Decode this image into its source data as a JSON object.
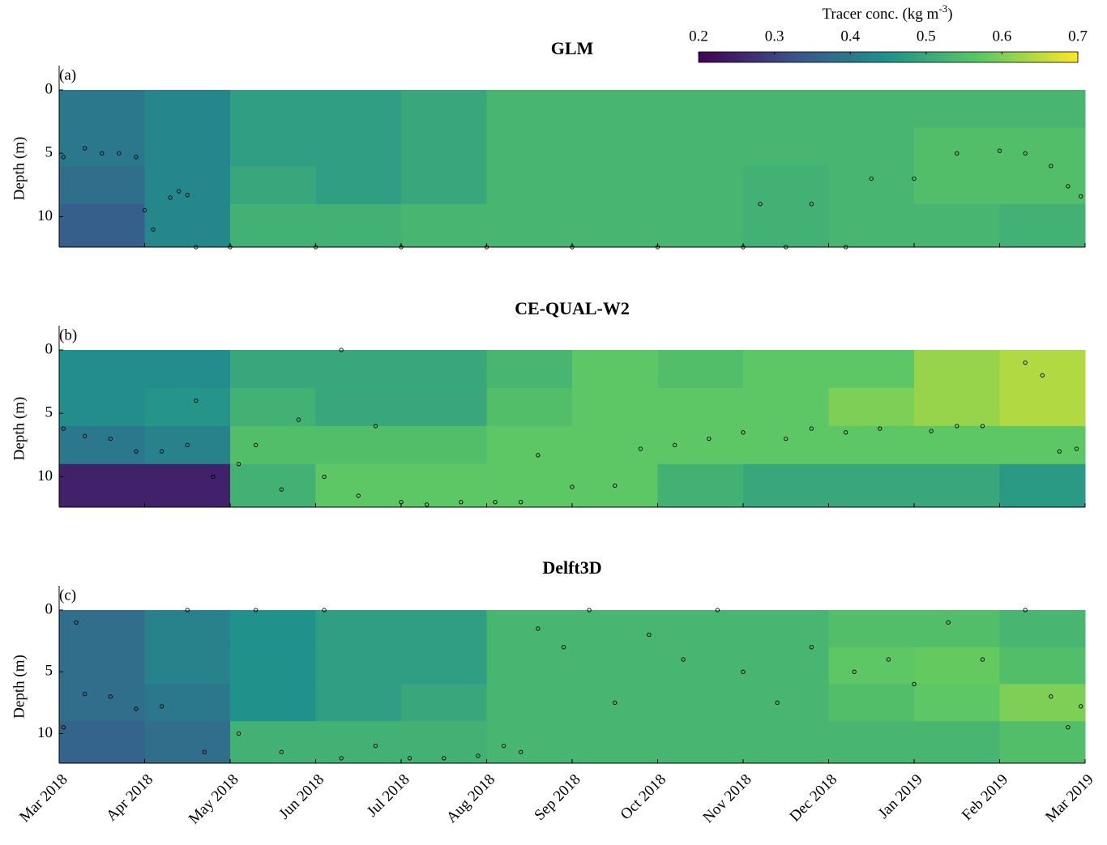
{
  "chart_data": [
    {
      "type": "heatmap-scatter",
      "title": "GLM",
      "panel_label": "(a)",
      "y_label": "Depth (m)",
      "ylim": [
        0,
        12.4
      ],
      "yticks": [
        0,
        5,
        10
      ],
      "xlim": [
        0,
        12
      ],
      "colorbar": {
        "label": "Tracer conc. (kg m",
        "label_superscript": "-3",
        "label_end": ")",
        "lim": [
          0.2,
          0.7
        ],
        "ticks": [
          0.2,
          0.3,
          0.4,
          0.5,
          0.6,
          0.7
        ]
      },
      "field": {
        "x_edges": [
          0,
          1,
          2,
          3,
          4,
          5,
          6,
          7,
          8,
          9,
          10,
          11,
          12
        ],
        "depth_edges": [
          0,
          3,
          6,
          9,
          12.4
        ],
        "values": [
          [
            0.4,
            0.4,
            0.38,
            0.35
          ],
          [
            0.43,
            0.43,
            0.43,
            0.43
          ],
          [
            0.48,
            0.48,
            0.5,
            0.52
          ],
          [
            0.48,
            0.48,
            0.48,
            0.52
          ],
          [
            0.5,
            0.5,
            0.5,
            0.53
          ],
          [
            0.53,
            0.53,
            0.53,
            0.53
          ],
          [
            0.53,
            0.53,
            0.53,
            0.53
          ],
          [
            0.53,
            0.53,
            0.53,
            0.53
          ],
          [
            0.53,
            0.53,
            0.52,
            0.52
          ],
          [
            0.53,
            0.53,
            0.53,
            0.53
          ],
          [
            0.53,
            0.55,
            0.55,
            0.53
          ],
          [
            0.53,
            0.55,
            0.55,
            0.52
          ]
        ]
      },
      "points": {
        "x": [
          0.05,
          0.3,
          0.5,
          0.7,
          0.9,
          1.0,
          1.1,
          1.3,
          1.4,
          1.5,
          1.6,
          2,
          3,
          4,
          5,
          6,
          7,
          8,
          8.2,
          8.5,
          8.8,
          9.2,
          9.5,
          10,
          10.5,
          11,
          11.3,
          11.6,
          11.8,
          11.95
        ],
        "values": [
          5.3,
          4.6,
          5,
          5,
          5.3,
          9.5,
          11,
          8.5,
          8,
          8.3,
          12.4,
          12.4,
          12.4,
          12.4,
          12.4,
          12.4,
          12.4,
          12.4,
          9,
          12.4,
          9,
          12.4,
          7,
          7,
          5,
          4.8,
          5,
          6,
          7.6,
          8.4
        ]
      }
    },
    {
      "type": "heatmap-scatter",
      "title": "CE-QUAL-W2",
      "panel_label": "(b)",
      "y_label": "Depth (m)",
      "ylim": [
        0,
        12.4
      ],
      "yticks": [
        0,
        5,
        10
      ],
      "xlim": [
        0,
        12
      ],
      "field": {
        "x_edges": [
          0,
          1,
          2,
          3,
          4,
          5,
          6,
          7,
          8,
          9,
          10,
          11,
          12
        ],
        "depth_edges": [
          0,
          3,
          6,
          9,
          12.4
        ],
        "values": [
          [
            0.44,
            0.44,
            0.4,
            0.25
          ],
          [
            0.44,
            0.46,
            0.42,
            0.25
          ],
          [
            0.5,
            0.52,
            0.55,
            0.52
          ],
          [
            0.5,
            0.5,
            0.55,
            0.57
          ],
          [
            0.5,
            0.5,
            0.55,
            0.57
          ],
          [
            0.53,
            0.55,
            0.57,
            0.57
          ],
          [
            0.57,
            0.57,
            0.57,
            0.57
          ],
          [
            0.55,
            0.57,
            0.57,
            0.52
          ],
          [
            0.57,
            0.57,
            0.57,
            0.5
          ],
          [
            0.57,
            0.6,
            0.57,
            0.5
          ],
          [
            0.62,
            0.62,
            0.57,
            0.5
          ],
          [
            0.64,
            0.64,
            0.57,
            0.47
          ]
        ]
      },
      "points": {
        "x": [
          0.05,
          0.3,
          0.6,
          0.9,
          1.2,
          1.5,
          1.6,
          1.8,
          2.1,
          2.3,
          2.6,
          2.8,
          3.1,
          3.3,
          3.5,
          3.7,
          4,
          4.3,
          4.7,
          5.1,
          5.4,
          5.6,
          6,
          6.5,
          6.8,
          7.2,
          7.6,
          8,
          8.5,
          8.8,
          9.2,
          9.6,
          10.2,
          10.5,
          10.8,
          11.3,
          11.5,
          11.7,
          11.9
        ],
        "values": [
          6.2,
          6.8,
          7,
          8,
          8,
          7.5,
          4,
          10,
          9,
          7.5,
          11,
          5.5,
          10,
          0,
          11.5,
          6,
          12,
          12.2,
          12,
          12,
          12,
          8.3,
          10.8,
          10.7,
          7.8,
          7.5,
          7,
          6.5,
          7,
          6.2,
          6.5,
          6.2,
          6.4,
          6,
          6,
          1,
          2,
          8,
          7.8
        ]
      }
    },
    {
      "type": "heatmap-scatter",
      "title": "Delft3D",
      "panel_label": "(c)",
      "y_label": "Depth (m)",
      "ylim": [
        0,
        12.4
      ],
      "yticks": [
        0,
        5,
        10
      ],
      "xlim": [
        0,
        12
      ],
      "xticks": [
        {
          "value": 0,
          "label": "Mar 2018"
        },
        {
          "value": 1,
          "label": "Apr 2018"
        },
        {
          "value": 2,
          "label": "May 2018"
        },
        {
          "value": 3,
          "label": "Jun 2018"
        },
        {
          "value": 4,
          "label": "Jul 2018"
        },
        {
          "value": 5,
          "label": "Aug 2018"
        },
        {
          "value": 6,
          "label": "Sep 2018"
        },
        {
          "value": 7,
          "label": "Oct 2018"
        },
        {
          "value": 8,
          "label": "Nov 2018"
        },
        {
          "value": 9,
          "label": "Dec 2018"
        },
        {
          "value": 10,
          "label": "Jan 2019"
        },
        {
          "value": 11,
          "label": "Feb 2019"
        },
        {
          "value": 12,
          "label": "Mar 2019"
        }
      ],
      "field": {
        "x_edges": [
          0,
          1,
          2,
          3,
          4,
          5,
          6,
          7,
          8,
          9,
          10,
          11,
          12
        ],
        "depth_edges": [
          0,
          3,
          6,
          9,
          12.4
        ],
        "values": [
          [
            0.38,
            0.38,
            0.38,
            0.36
          ],
          [
            0.42,
            0.42,
            0.4,
            0.38
          ],
          [
            0.45,
            0.45,
            0.45,
            0.52
          ],
          [
            0.48,
            0.48,
            0.48,
            0.52
          ],
          [
            0.48,
            0.48,
            0.5,
            0.52
          ],
          [
            0.53,
            0.53,
            0.53,
            0.53
          ],
          [
            0.53,
            0.53,
            0.53,
            0.53
          ],
          [
            0.53,
            0.53,
            0.53,
            0.53
          ],
          [
            0.53,
            0.53,
            0.53,
            0.53
          ],
          [
            0.55,
            0.57,
            0.55,
            0.53
          ],
          [
            0.55,
            0.58,
            0.57,
            0.53
          ],
          [
            0.53,
            0.55,
            0.6,
            0.55
          ]
        ]
      },
      "points": {
        "x": [
          0.05,
          0.2,
          0.3,
          0.6,
          0.9,
          1.2,
          1.5,
          1.7,
          2.1,
          2.3,
          2.6,
          3.1,
          3.3,
          3.7,
          4.1,
          4.5,
          4.9,
          5.2,
          5.4,
          5.6,
          5.9,
          6.2,
          6.5,
          6.9,
          7.3,
          7.7,
          8.0,
          8.4,
          8.8,
          9.3,
          9.7,
          10.0,
          10.4,
          10.8,
          11.3,
          11.6,
          11.8,
          11.95
        ],
        "values": [
          9.5,
          1,
          6.8,
          7,
          8,
          7.8,
          0,
          11.5,
          10,
          0,
          11.5,
          0,
          12,
          11,
          12,
          12,
          11.8,
          11,
          11.5,
          1.5,
          3,
          0,
          7.5,
          2,
          4,
          0,
          5,
          7.5,
          3,
          5,
          4,
          6,
          1,
          4,
          0,
          7,
          9.5,
          7.8
        ]
      }
    }
  ]
}
